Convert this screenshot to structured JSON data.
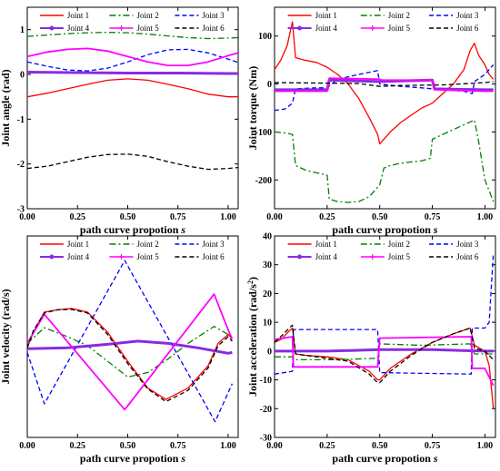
{
  "chart_data": [
    {
      "type": "line",
      "xlabel": "path curve propotion",
      "xlabel_var": "s",
      "ylabel": "Joint angle (rad)",
      "xlim": [
        0,
        1.05
      ],
      "ylim": [
        -3,
        1.5
      ],
      "xticks": [
        "0.00",
        "0.25",
        "0.50",
        "0.75",
        "1.00"
      ],
      "yticks": [
        -3,
        -2,
        -1,
        0,
        1
      ],
      "legend": "top, 3 columns",
      "grid": false,
      "series": [
        {
          "name": "Joint 1",
          "color": "#ff0000",
          "dash": "solid",
          "marker": "none",
          "x": [
            0,
            0.1,
            0.2,
            0.3,
            0.4,
            0.5,
            0.6,
            0.7,
            0.8,
            0.9,
            1.0,
            1.05
          ],
          "y": [
            -0.5,
            -0.42,
            -0.32,
            -0.22,
            -0.13,
            -0.1,
            -0.13,
            -0.22,
            -0.32,
            -0.44,
            -0.5,
            -0.5
          ]
        },
        {
          "name": "Joint 2",
          "color": "#008000",
          "dash": "dashdot",
          "marker": "none",
          "x": [
            0,
            0.1,
            0.2,
            0.3,
            0.4,
            0.5,
            0.6,
            0.7,
            0.8,
            0.9,
            1.0,
            1.05
          ],
          "y": [
            0.85,
            0.88,
            0.91,
            0.93,
            0.94,
            0.93,
            0.9,
            0.86,
            0.82,
            0.8,
            0.81,
            0.82
          ]
        },
        {
          "name": "Joint 3",
          "color": "#0000ff",
          "dash": "dashed",
          "marker": "none",
          "x": [
            0,
            0.1,
            0.2,
            0.3,
            0.4,
            0.5,
            0.6,
            0.7,
            0.8,
            0.9,
            1.0,
            1.05
          ],
          "y": [
            0.28,
            0.18,
            0.1,
            0.08,
            0.14,
            0.28,
            0.44,
            0.55,
            0.56,
            0.48,
            0.34,
            0.27
          ]
        },
        {
          "name": "Joint 4",
          "color": "#8a2be2",
          "dash": "solid",
          "marker": "circle",
          "x": [
            0,
            0.25,
            0.5,
            0.75,
            1.0,
            1.05
          ],
          "y": [
            0.05,
            0.04,
            0.03,
            0.03,
            0.02,
            0.02
          ]
        },
        {
          "name": "Joint 5",
          "color": "#ff00ff",
          "dash": "solid",
          "marker": "plus",
          "x": [
            0,
            0.1,
            0.2,
            0.3,
            0.4,
            0.5,
            0.6,
            0.7,
            0.8,
            0.9,
            1.0,
            1.05
          ],
          "y": [
            0.4,
            0.5,
            0.56,
            0.58,
            0.52,
            0.4,
            0.28,
            0.2,
            0.2,
            0.28,
            0.42,
            0.48
          ]
        },
        {
          "name": "Joint 6",
          "color": "#000000",
          "dash": "dashed",
          "marker": "none",
          "x": [
            0,
            0.1,
            0.2,
            0.3,
            0.4,
            0.5,
            0.6,
            0.7,
            0.8,
            0.9,
            1.0,
            1.05
          ],
          "y": [
            -2.1,
            -2.05,
            -1.95,
            -1.85,
            -1.79,
            -1.78,
            -1.83,
            -1.95,
            -2.05,
            -2.12,
            -2.1,
            -2.08
          ]
        }
      ]
    },
    {
      "type": "line",
      "xlabel": "path curve propotion",
      "xlabel_var": "s",
      "ylabel": "Joint torque (Nm)",
      "xlim": [
        0,
        1.05
      ],
      "ylim": [
        -260,
        160
      ],
      "xticks": [
        "0.00",
        "0.25",
        "0.50",
        "0.75",
        "1.00"
      ],
      "yticks": [
        -200,
        -100,
        0,
        100
      ],
      "legend": "top, 3 columns",
      "grid": false,
      "series": [
        {
          "name": "Joint 1",
          "color": "#ff0000",
          "dash": "solid",
          "marker": "none",
          "x": [
            0,
            0.03,
            0.06,
            0.085,
            0.1,
            0.14,
            0.2,
            0.25,
            0.3,
            0.35,
            0.4,
            0.45,
            0.49,
            0.5,
            0.52,
            0.55,
            0.6,
            0.65,
            0.7,
            0.75,
            0.8,
            0.85,
            0.9,
            0.93,
            0.95,
            0.97,
            1.0,
            1.02,
            1.04
          ],
          "y": [
            30,
            50,
            80,
            130,
            55,
            50,
            45,
            35,
            20,
            0,
            -30,
            -70,
            -105,
            -125,
            -115,
            -100,
            -80,
            -65,
            -50,
            -40,
            -20,
            0,
            30,
            70,
            85,
            60,
            40,
            20,
            10
          ]
        },
        {
          "name": "Joint 2",
          "color": "#008000",
          "dash": "dashdot",
          "marker": "none",
          "x": [
            0,
            0.05,
            0.085,
            0.1,
            0.15,
            0.2,
            0.25,
            0.26,
            0.3,
            0.35,
            0.4,
            0.45,
            0.5,
            0.52,
            0.55,
            0.6,
            0.7,
            0.74,
            0.75,
            0.8,
            0.85,
            0.9,
            0.95,
            0.97,
            1.0,
            1.04
          ],
          "y": [
            -100,
            -102,
            -105,
            -170,
            -180,
            -185,
            -190,
            -240,
            -245,
            -247,
            -245,
            -235,
            -210,
            -175,
            -170,
            -165,
            -160,
            -155,
            -115,
            -105,
            -95,
            -85,
            -75,
            -120,
            -200,
            -245
          ]
        },
        {
          "name": "Joint 3",
          "color": "#0000ff",
          "dash": "dashed",
          "marker": "none",
          "x": [
            0,
            0.05,
            0.085,
            0.1,
            0.2,
            0.25,
            0.3,
            0.4,
            0.49,
            0.5,
            0.6,
            0.7,
            0.75,
            0.8,
            0.9,
            0.94,
            0.95,
            1.0,
            1.02,
            1.04
          ],
          "y": [
            -55,
            -52,
            -40,
            -10,
            -8,
            -8,
            10,
            20,
            28,
            0,
            -5,
            -8,
            -10,
            -12,
            -15,
            -20,
            5,
            20,
            30,
            40
          ]
        },
        {
          "name": "Joint 4",
          "color": "#8a2be2",
          "dash": "solid",
          "marker": "circle",
          "x": [
            0,
            0.25,
            0.26,
            0.5,
            0.75,
            0.76,
            1.0,
            1.04
          ],
          "y": [
            -12,
            -12,
            8,
            5,
            8,
            -10,
            -12,
            -12
          ]
        },
        {
          "name": "Joint 5",
          "color": "#ff00ff",
          "dash": "solid",
          "marker": "plus",
          "x": [
            0,
            0.1,
            0.25,
            0.26,
            0.5,
            0.51,
            0.75,
            0.76,
            1.0,
            1.04
          ],
          "y": [
            -15,
            -15,
            -15,
            12,
            10,
            8,
            8,
            -12,
            -15,
            -15
          ]
        },
        {
          "name": "Joint 6",
          "color": "#000000",
          "dash": "dashed",
          "marker": "none",
          "x": [
            0,
            0.2,
            0.4,
            0.5,
            0.6,
            0.8,
            1.0,
            1.04
          ],
          "y": [
            3,
            2,
            1,
            -5,
            -3,
            -2,
            3,
            5
          ]
        }
      ]
    },
    {
      "type": "line",
      "xlabel": "path curve propotion",
      "xlabel_var": "s",
      "ylabel": "Joint velocity (rad/s)",
      "xlim": [
        0,
        1.05
      ],
      "ylim": [
        -2,
        2.5
      ],
      "xticks": [
        "0.00",
        "0.25",
        "0.50",
        "0.75",
        "1.00"
      ],
      "yticks": [],
      "legend": "top, 3 columns",
      "grid": false,
      "series": [
        {
          "name": "Joint 1",
          "color": "#ff0000",
          "dash": "solid",
          "marker": "none",
          "x": [
            0,
            0.03,
            0.085,
            0.15,
            0.22,
            0.3,
            0.4,
            0.5,
            0.6,
            0.69,
            0.8,
            0.9,
            0.95,
            1.0,
            1.02
          ],
          "y": [
            0,
            0.35,
            0.8,
            0.85,
            0.88,
            0.8,
            0.35,
            -0.3,
            -0.9,
            -1.15,
            -0.9,
            -0.4,
            0.1,
            0.3,
            0.2
          ]
        },
        {
          "name": "Joint 2",
          "color": "#008000",
          "dash": "dashdot",
          "marker": "none",
          "x": [
            0,
            0.085,
            0.2,
            0.3,
            0.4,
            0.5,
            0.6,
            0.7,
            0.8,
            0.93,
            1.0,
            1.02
          ],
          "y": [
            0.1,
            0.45,
            0.25,
            0.05,
            -0.3,
            -0.65,
            -0.55,
            -0.25,
            0.1,
            0.48,
            0.3,
            0.25
          ]
        },
        {
          "name": "Joint 3",
          "color": "#0000ff",
          "dash": "dashed",
          "marker": "none",
          "x": [
            0,
            0.085,
            0.485,
            0.935,
            1.02
          ],
          "y": [
            -0.1,
            -1.25,
            1.95,
            -1.65,
            -0.8
          ]
        },
        {
          "name": "Joint 4",
          "color": "#8a2be2",
          "dash": "solid",
          "marker": "circle",
          "x": [
            0,
            0.2,
            0.4,
            0.55,
            0.7,
            0.85,
            1.0,
            1.02
          ],
          "y": [
            -0.02,
            0.0,
            0.08,
            0.15,
            0.1,
            0.0,
            -0.12,
            -0.1
          ]
        },
        {
          "name": "Joint 5",
          "color": "#ff00ff",
          "dash": "solid",
          "marker": "plus",
          "x": [
            0,
            0.085,
            0.485,
            0.93,
            1.0,
            1.02
          ],
          "y": [
            0.1,
            0.75,
            -1.38,
            1.2,
            0.4,
            0.2
          ]
        },
        {
          "name": "Joint 6",
          "color": "#000000",
          "dash": "dashed",
          "marker": "none",
          "x": [
            0,
            0.03,
            0.085,
            0.15,
            0.22,
            0.3,
            0.4,
            0.5,
            0.6,
            0.69,
            0.8,
            0.9,
            0.95,
            1.0,
            1.02
          ],
          "y": [
            0,
            0.38,
            0.78,
            0.85,
            0.86,
            0.78,
            0.3,
            -0.35,
            -0.92,
            -1.2,
            -0.95,
            -0.45,
            0.05,
            0.25,
            0.15
          ]
        }
      ]
    },
    {
      "type": "line",
      "xlabel": "path curve propotion",
      "xlabel_var": "s",
      "ylabel": "Joint acceleration (rad/s",
      "ylabel_sup": "2",
      "ylabel_close": ")",
      "xlim": [
        0,
        1.05
      ],
      "ylim": [
        -30,
        40
      ],
      "xticks": [
        "0.00",
        "0.25",
        "0.50",
        "0.75",
        "1.00"
      ],
      "yticks": [
        -30,
        -20,
        -10,
        0,
        10,
        20,
        30,
        40
      ],
      "legend": "top, 3 columns",
      "grid": false,
      "series": [
        {
          "name": "Joint 1",
          "color": "#ff0000",
          "dash": "solid",
          "marker": "none",
          "x": [
            0,
            0.03,
            0.07,
            0.085,
            0.1,
            0.15,
            0.25,
            0.35,
            0.45,
            0.49,
            0.5,
            0.55,
            0.65,
            0.75,
            0.85,
            0.93,
            0.95,
            1.0,
            1.02,
            1.04
          ],
          "y": [
            3,
            4,
            7,
            8,
            -1,
            -1.5,
            -2,
            -3,
            -7,
            -10,
            -10,
            -6,
            -1,
            3,
            6,
            8,
            2,
            0,
            -5,
            -20
          ]
        },
        {
          "name": "Joint 2",
          "color": "#008000",
          "dash": "dashdot",
          "marker": "none",
          "x": [
            0,
            0.085,
            0.1,
            0.3,
            0.49,
            0.5,
            0.7,
            0.93,
            0.95,
            1.04
          ],
          "y": [
            -2,
            -2,
            -3,
            -3,
            -2.5,
            2.5,
            2,
            2.5,
            -1,
            -1
          ]
        },
        {
          "name": "Joint 3",
          "color": "#0000ff",
          "dash": "dashed",
          "marker": "none",
          "x": [
            0,
            0.085,
            0.09,
            0.49,
            0.5,
            0.935,
            0.94,
            1.0,
            1.02,
            1.04
          ],
          "y": [
            -8,
            -7,
            7.5,
            7.5,
            -7.5,
            -8,
            8,
            8,
            10,
            34
          ]
        },
        {
          "name": "Joint 4",
          "color": "#8a2be2",
          "dash": "solid",
          "marker": "circle",
          "x": [
            0,
            0.25,
            0.5,
            0.75,
            1.0,
            1.04
          ],
          "y": [
            0,
            0,
            0.5,
            0.5,
            0,
            0
          ]
        },
        {
          "name": "Joint 5",
          "color": "#ff00ff",
          "dash": "solid",
          "marker": "plus",
          "x": [
            0,
            0.085,
            0.09,
            0.49,
            0.5,
            0.935,
            0.94,
            1.0,
            1.04
          ],
          "y": [
            4,
            5,
            -5.5,
            -5.5,
            4.5,
            5,
            -6,
            -6,
            -12
          ]
        },
        {
          "name": "Joint 6",
          "color": "#000000",
          "dash": "dashed",
          "marker": "none",
          "x": [
            0,
            0.03,
            0.07,
            0.085,
            0.1,
            0.15,
            0.25,
            0.35,
            0.45,
            0.49,
            0.5,
            0.55,
            0.65,
            0.75,
            0.85,
            0.93,
            0.95,
            1.0,
            1.04
          ],
          "y": [
            3,
            5,
            8,
            9,
            -1,
            -1.5,
            -2.5,
            -3.5,
            -8,
            -11,
            -11,
            -7,
            -1.5,
            3,
            6,
            8,
            1,
            0,
            -3
          ]
        }
      ]
    }
  ]
}
